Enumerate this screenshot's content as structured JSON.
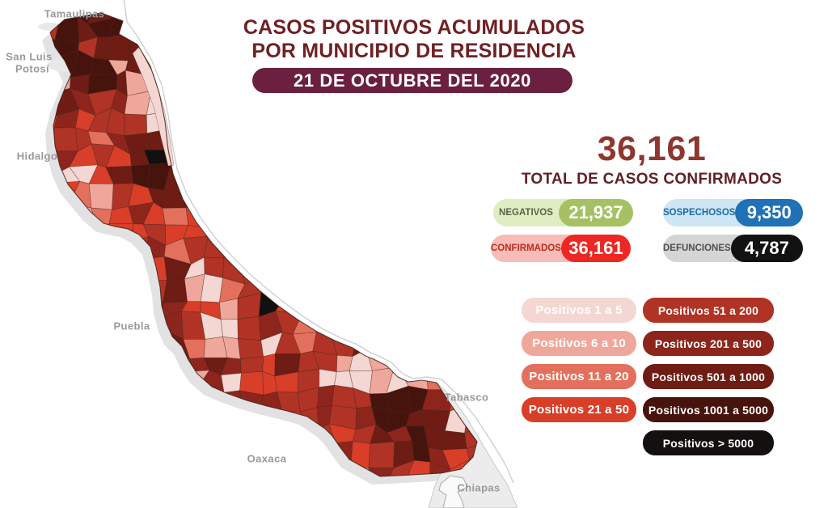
{
  "header": {
    "title_line1": "CASOS POSITIVOS ACUMULADOS",
    "title_line2": "POR MUNICIPIO DE RESIDENCIA",
    "date_banner": "21 DE OCTUBRE DEL 2020"
  },
  "summary": {
    "total_value": "36,161",
    "total_label": "TOTAL DE CASOS CONFIRMADOS"
  },
  "stats": [
    {
      "label": "NEGATIVOS",
      "value": "21,937",
      "bg_light": "#e0ecc2",
      "bg_dark": "#a6c163",
      "label_color": "#5c6147"
    },
    {
      "label": "CONFIRMADOS",
      "value": "36,161",
      "bg_light": "#f7bcb8",
      "bg_dark": "#ed2723",
      "label_color": "#bb2d21"
    },
    {
      "label": "SOSPECHOSOS",
      "value": "9,350",
      "bg_light": "#cfe6f5",
      "bg_dark": "#2071b6",
      "label_color": "#1b6aa8"
    },
    {
      "label": "DEFUNCIONES",
      "value": "4,787",
      "bg_light": "#d5d5d5",
      "bg_dark": "#121212",
      "label_color": "#4f4f4f"
    }
  ],
  "legend": {
    "items": [
      {
        "label": "Positivos 1 a 5",
        "color": "#f4d7d2"
      },
      {
        "label": "Positivos 6 a 10",
        "color": "#f0a79b"
      },
      {
        "label": "Positivos 11 a 20",
        "color": "#e3705c"
      },
      {
        "label": "Positivos 21 a 50",
        "color": "#d93e28"
      },
      {
        "label": "Positivos 51 a 200",
        "color": "#b03325"
      },
      {
        "label": "Positivos 201 a 500",
        "color": "#8e251c"
      },
      {
        "label": "Positivos 501 a 1000",
        "color": "#6e1c14"
      },
      {
        "label": "Positivos 1001 a 5000",
        "color": "#47130d"
      },
      {
        "label": "Positivos > 5000",
        "color": "#151010"
      }
    ]
  },
  "map_labels": {
    "tamaulipas": "Tamaulipas",
    "san_luis_potosi_line1": "San Luis",
    "san_luis_potosi_line2": "Potosí",
    "hidalgo": "Hidalgo",
    "puebla": "Puebla",
    "oaxaca": "Oaxaca",
    "tabasco": "Tabasco",
    "chiapas": "Chiapas"
  },
  "colors": {
    "title": "#6f2124",
    "banner_bg": "#6b2040",
    "total_number": "#8e372e",
    "total_label": "#5f2126",
    "state_label": "#9a9a9a"
  }
}
